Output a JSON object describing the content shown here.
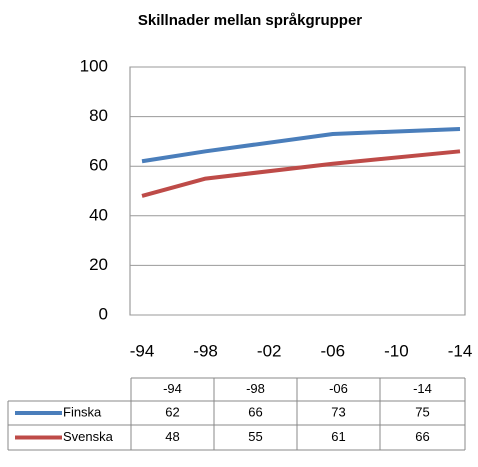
{
  "chart_data": {
    "type": "line",
    "title": "Skillnader mellan språkgrupper",
    "x": [
      1994,
      1998,
      2006,
      2014
    ],
    "xlim": [
      1994,
      2014
    ],
    "xticks": [
      {
        "value": 1994,
        "label": "-94"
      },
      {
        "value": 1998,
        "label": "-98"
      },
      {
        "value": 2002,
        "label": "-02"
      },
      {
        "value": 2006,
        "label": "-06"
      },
      {
        "value": 2010,
        "label": "-10"
      },
      {
        "value": 2014,
        "label": "-14"
      }
    ],
    "ylim": [
      0,
      100
    ],
    "yticks": [
      0,
      20,
      40,
      60,
      80,
      100
    ],
    "grid": true,
    "series": [
      {
        "name": "Finska",
        "color": "#4a7ebb",
        "values": [
          62,
          66,
          73,
          75
        ]
      },
      {
        "name": "Svenska",
        "color": "#be4b48",
        "values": [
          48,
          55,
          61,
          66
        ]
      }
    ],
    "table": {
      "columns": [
        "-94",
        "-98",
        "-06",
        "-14"
      ]
    }
  }
}
